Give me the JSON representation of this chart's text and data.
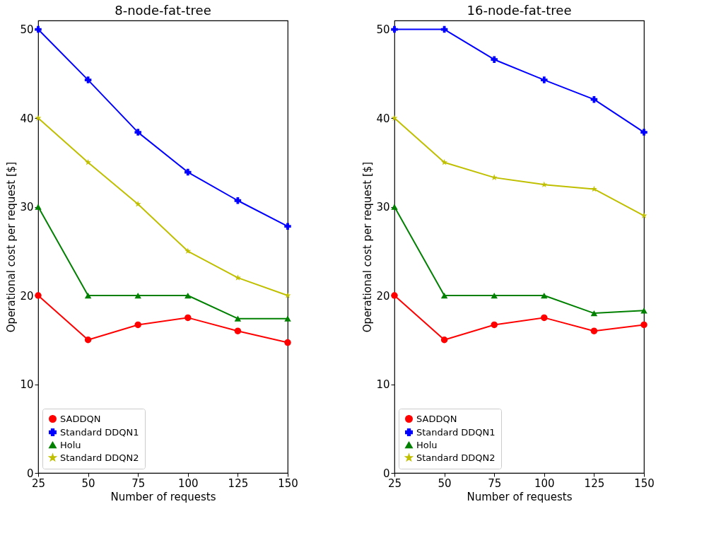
{
  "chart_data": [
    {
      "type": "line",
      "title": "8-node-fat-tree",
      "xlabel": "Number of requests",
      "ylabel": "Operational cost per request [$]",
      "x": [
        25,
        50,
        75,
        100,
        125,
        150
      ],
      "xlim": [
        25,
        150
      ],
      "xticks": [
        25,
        50,
        75,
        100,
        125,
        150
      ],
      "ylim": [
        0,
        51
      ],
      "yticks": [
        0,
        10,
        20,
        30,
        40,
        50
      ],
      "legend": "bottom left",
      "grid": false,
      "series": [
        {
          "name": "SADDQN",
          "color": "#ff0000",
          "marker": "circle",
          "values": [
            20,
            15,
            16.7,
            17.5,
            16,
            14.7
          ]
        },
        {
          "name": "Standard DDQN1",
          "color": "#0000ff",
          "marker": "cross",
          "values": [
            50,
            44.3,
            38.4,
            33.9,
            30.7,
            27.8
          ]
        },
        {
          "name": "Holu",
          "color": "#008000",
          "marker": "triangle",
          "values": [
            30,
            20,
            20,
            20,
            17.4,
            17.4
          ]
        },
        {
          "name": "Standard DDQN2",
          "color": "#bfbf00",
          "marker": "star",
          "values": [
            40,
            35,
            30.3,
            25,
            22,
            20
          ]
        }
      ]
    },
    {
      "type": "line",
      "title": "16-node-fat-tree",
      "xlabel": "Number of requests",
      "ylabel": "Operational cost per request [$]",
      "x": [
        25,
        50,
        75,
        100,
        125,
        150
      ],
      "xlim": [
        25,
        150
      ],
      "xticks": [
        25,
        50,
        75,
        100,
        125,
        150
      ],
      "ylim": [
        0,
        51
      ],
      "yticks": [
        0,
        10,
        20,
        30,
        40,
        50
      ],
      "legend": "bottom left",
      "grid": false,
      "series": [
        {
          "name": "SADDQN",
          "color": "#ff0000",
          "marker": "circle",
          "values": [
            20,
            15,
            16.7,
            17.5,
            16,
            16.7
          ]
        },
        {
          "name": "Standard DDQN1",
          "color": "#0000ff",
          "marker": "cross",
          "values": [
            50,
            50,
            46.6,
            44.3,
            42.1,
            38.4
          ]
        },
        {
          "name": "Holu",
          "color": "#008000",
          "marker": "triangle",
          "values": [
            30,
            20,
            20,
            20,
            18,
            18.3
          ]
        },
        {
          "name": "Standard DDQN2",
          "color": "#bfbf00",
          "marker": "star",
          "values": [
            40,
            35,
            33.3,
            32.5,
            32,
            29
          ]
        }
      ]
    }
  ]
}
